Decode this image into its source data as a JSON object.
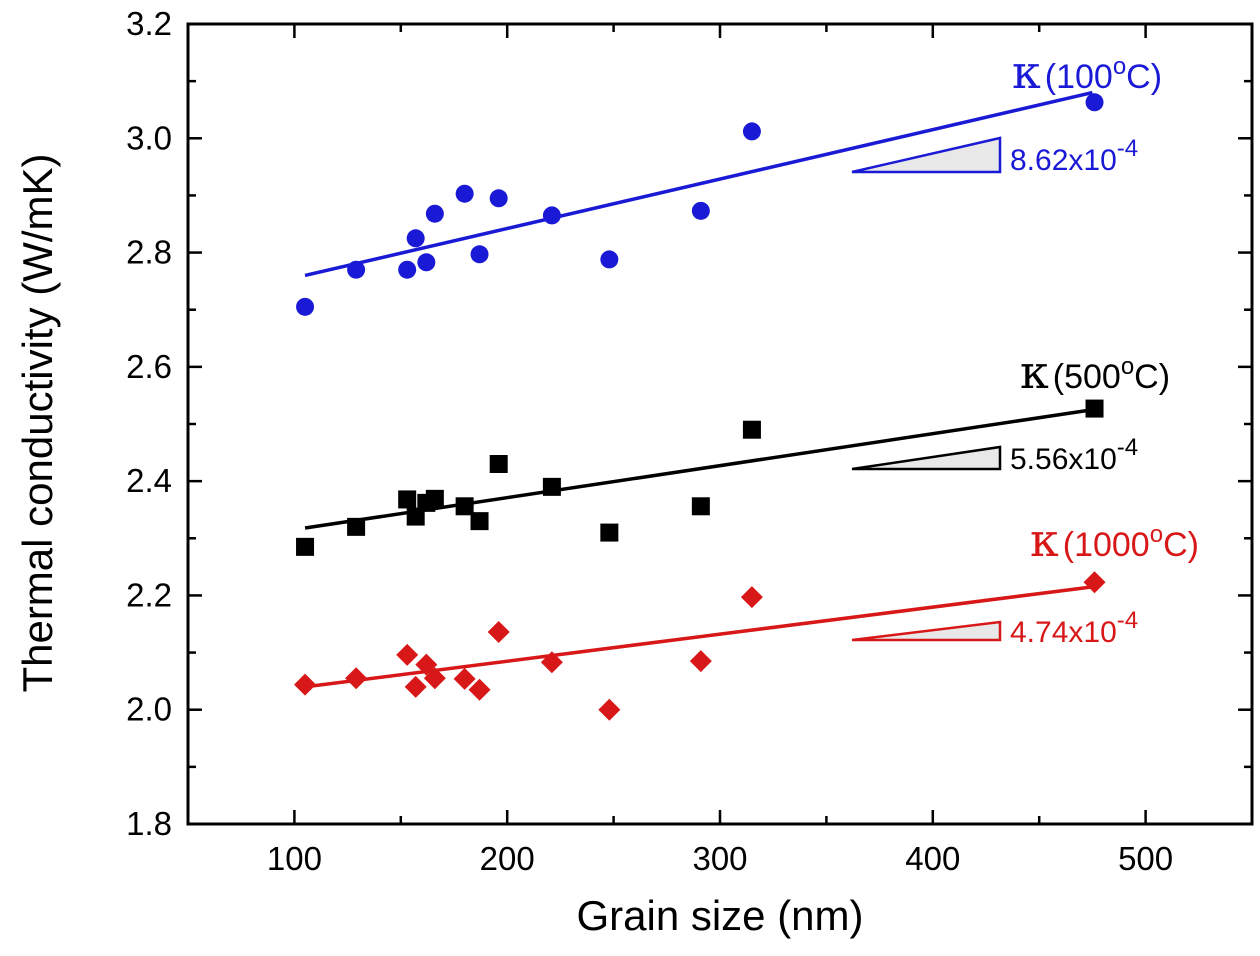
{
  "chart_data": {
    "type": "scatter",
    "title": "",
    "xlabel": "Grain size (nm)",
    "ylabel": "Thermal conductivity  (W/mK)",
    "xlim": [
      50,
      550
    ],
    "ylim": [
      1.8,
      3.2
    ],
    "x_ticks": [
      100,
      200,
      300,
      400,
      500
    ],
    "x_tick_labels": [
      "100",
      "200",
      "300",
      "400",
      "500"
    ],
    "y_ticks": [
      1.8,
      2.0,
      2.2,
      2.4,
      2.6,
      2.8,
      3.0,
      3.2
    ],
    "y_tick_labels": [
      "1.8",
      "2.0",
      "2.2",
      "2.4",
      "2.6",
      "2.8",
      "3.0",
      "3.2"
    ],
    "grid": false,
    "series": [
      {
        "key": "k100",
        "label_symbol": "κ",
        "label_text": "(100",
        "label_sup": "o",
        "label_tail": "C)",
        "color": "#1a1ad6",
        "marker": "circle",
        "slope_label": "8.62x10",
        "slope_exp": "-4",
        "points": [
          [
            105,
            2.705
          ],
          [
            129,
            2.77
          ],
          [
            153,
            2.77
          ],
          [
            157,
            2.825
          ],
          [
            162,
            2.783
          ],
          [
            166,
            2.868
          ],
          [
            180,
            2.903
          ],
          [
            187,
            2.797
          ],
          [
            196,
            2.895
          ],
          [
            221,
            2.865
          ],
          [
            248,
            2.788
          ],
          [
            291,
            2.873
          ],
          [
            315,
            3.012
          ],
          [
            476,
            3.063
          ]
        ],
        "fit": [
          [
            105,
            2.76
          ],
          [
            475,
            3.08
          ]
        ]
      },
      {
        "key": "k500",
        "label_symbol": "κ",
        "label_text": "(500",
        "label_sup": "o",
        "label_tail": "C)",
        "color": "#000000",
        "marker": "square",
        "slope_label": "5.56x10",
        "slope_exp": "-4",
        "points": [
          [
            105,
            2.285
          ],
          [
            129,
            2.32
          ],
          [
            153,
            2.368
          ],
          [
            157,
            2.338
          ],
          [
            162,
            2.362
          ],
          [
            166,
            2.369
          ],
          [
            180,
            2.356
          ],
          [
            187,
            2.33
          ],
          [
            196,
            2.43
          ],
          [
            221,
            2.39
          ],
          [
            248,
            2.31
          ],
          [
            291,
            2.356
          ],
          [
            315,
            2.49
          ],
          [
            476,
            2.527
          ]
        ],
        "fit": [
          [
            105,
            2.318
          ],
          [
            475,
            2.525
          ]
        ]
      },
      {
        "key": "k1000",
        "label_symbol": "κ",
        "label_text": "(1000",
        "label_sup": "o",
        "label_tail": "C)",
        "color": "#d81818",
        "marker": "diamond",
        "slope_label": "4.74x10",
        "slope_exp": "-4",
        "points": [
          [
            105,
            2.044
          ],
          [
            129,
            2.055
          ],
          [
            153,
            2.096
          ],
          [
            157,
            2.04
          ],
          [
            162,
            2.079
          ],
          [
            166,
            2.055
          ],
          [
            180,
            2.054
          ],
          [
            187,
            2.035
          ],
          [
            196,
            2.136
          ],
          [
            221,
            2.083
          ],
          [
            248,
            2.0
          ],
          [
            291,
            2.085
          ],
          [
            315,
            2.197
          ],
          [
            476,
            2.223
          ]
        ],
        "fit": [
          [
            105,
            2.04
          ],
          [
            475,
            2.215
          ]
        ]
      }
    ]
  }
}
